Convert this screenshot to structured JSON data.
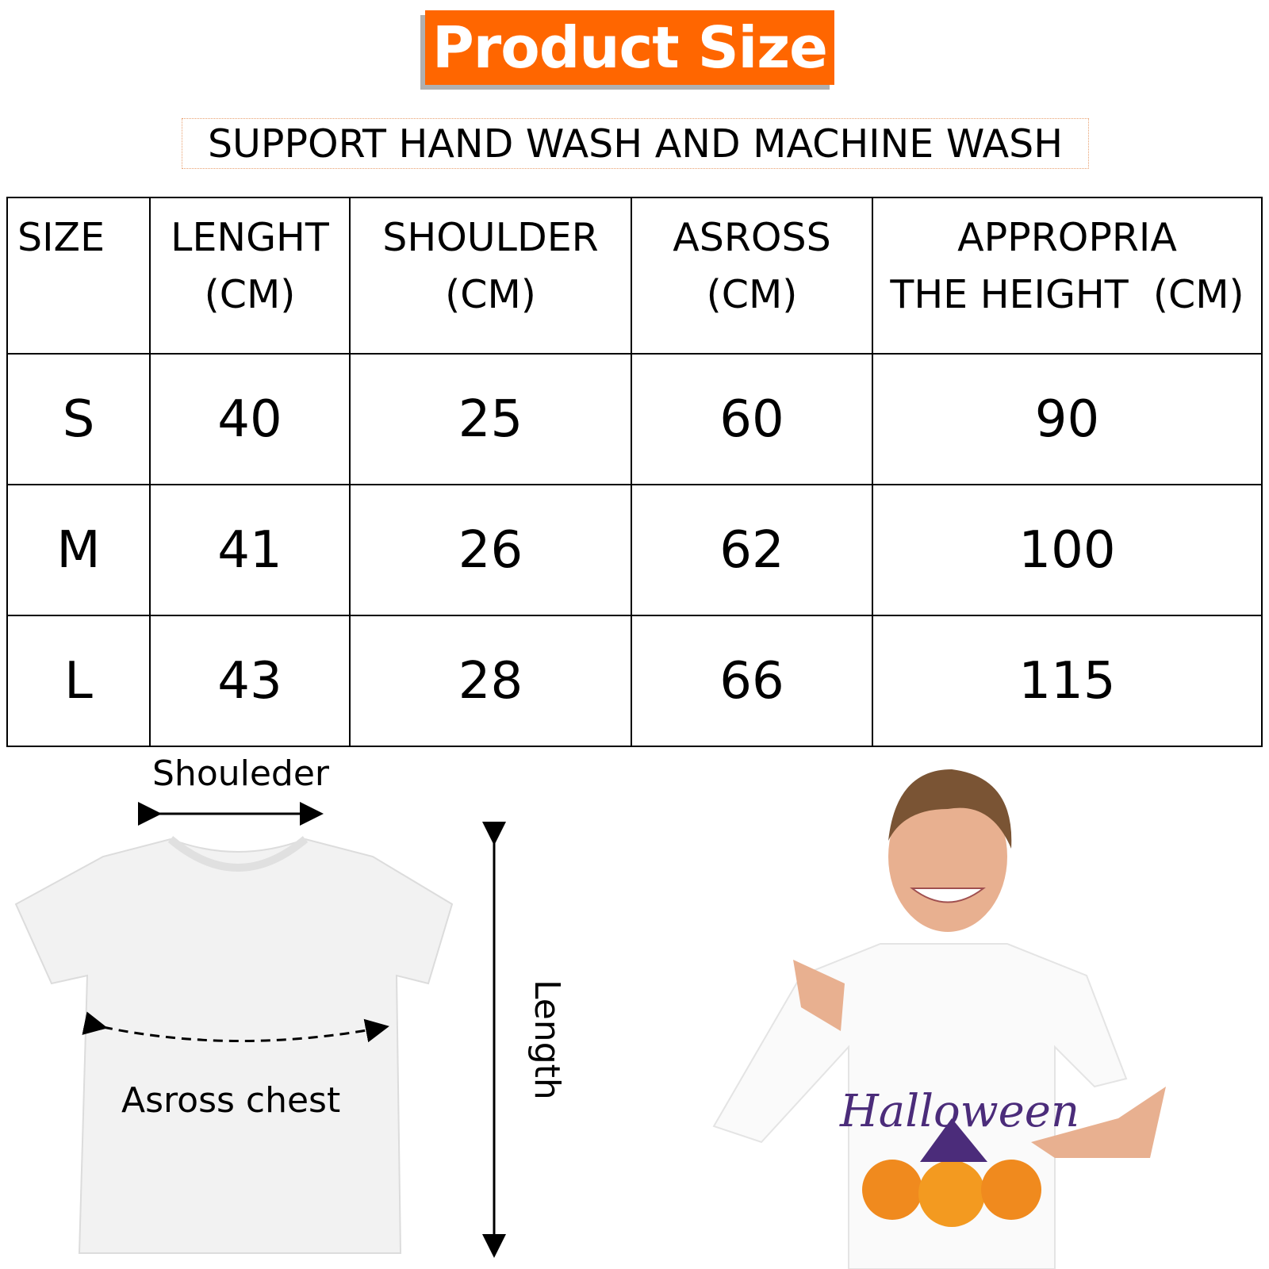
{
  "title": "Product Size",
  "subtitle": "SUPPORT HAND WASH AND MACHINE WASH",
  "colors": {
    "accent": "#ff6600",
    "shadow": "#b0b0b0"
  },
  "table": {
    "headers": [
      {
        "line1": "SIZE",
        "line2": ""
      },
      {
        "line1": "LENGHT",
        "line2": "(CM)"
      },
      {
        "line1": "SHOULDER",
        "line2": "(CM)"
      },
      {
        "line1": "ASROSS",
        "line2": "(CM)"
      },
      {
        "line1": "APPROPRIA",
        "line2": "THE HEIGHT  (CM)"
      }
    ],
    "rows": [
      [
        "S",
        "40",
        "25",
        "60",
        "90"
      ],
      [
        "M",
        "41",
        "26",
        "62",
        "100"
      ],
      [
        "L",
        "43",
        "28",
        "66",
        "115"
      ]
    ]
  },
  "diagram": {
    "shoulder_label": "Shouleder",
    "chest_label": "Asross chest",
    "length_label": "Length"
  },
  "photo": {
    "shirt_print": "Halloween"
  }
}
